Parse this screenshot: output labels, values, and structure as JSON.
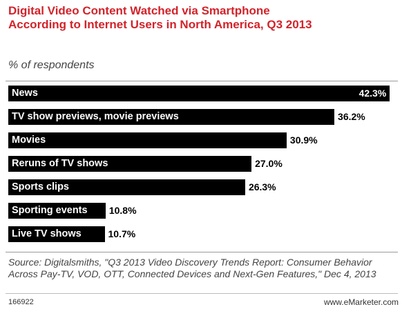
{
  "chart_data": {
    "type": "bar",
    "orientation": "horizontal",
    "title": "Digital Video Content Watched via Smartphone According to Internet Users in North America, Q3 2013",
    "subtitle": "% of respondents",
    "categories": [
      "News",
      "TV show previews, movie previews",
      "Movies",
      "Reruns of TV shows",
      "Sports clips",
      "Sporting events",
      "Live TV shows"
    ],
    "values": [
      42.3,
      36.2,
      30.9,
      27.0,
      26.3,
      10.8,
      10.7
    ],
    "value_labels": [
      "42.3%",
      "36.2%",
      "30.9%",
      "27.0%",
      "26.3%",
      "10.8%",
      "10.7%"
    ],
    "color": "#000000",
    "title_color": "#d2232a",
    "source": "Source: Digitalsmiths, \"Q3 2013 Video Discovery Trends Report: Consumer Behavior Across Pay-TV, VOD, OTT, Connected Devices and Next-Gen Features,\" Dec 4, 2013",
    "chart_id": "166922",
    "website": "www.eMarketer.com"
  }
}
